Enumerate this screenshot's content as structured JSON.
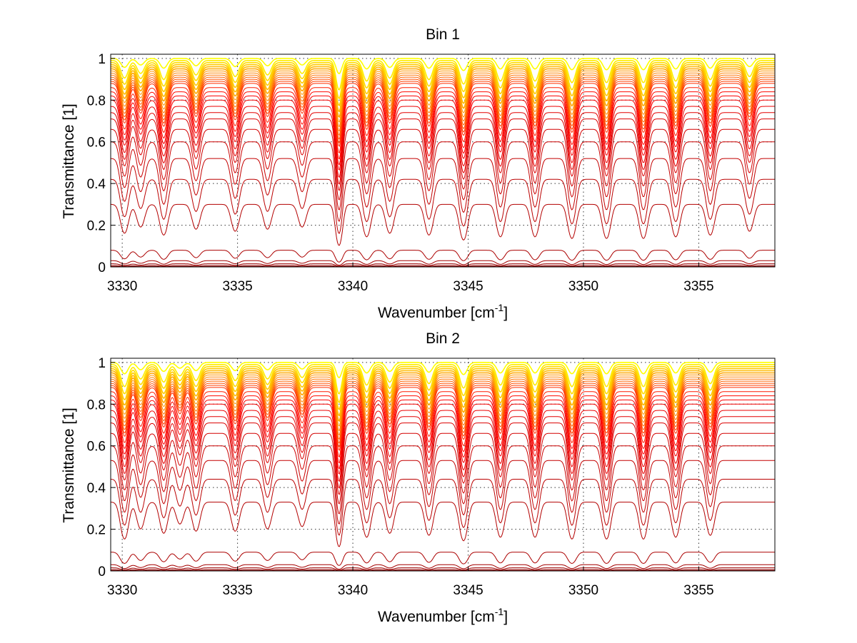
{
  "chart_data": [
    {
      "type": "line",
      "title": "Bin 1",
      "xlabel": "Wavenumber [cm",
      "xlabel_sup": "-1",
      "xlabel_end": "]",
      "ylabel": "Transmittance [1]",
      "xlim": [
        3329.5,
        3358.3
      ],
      "ylim": [
        0,
        1.02
      ],
      "xticks": [
        3330,
        3335,
        3340,
        3345,
        3350,
        3355
      ],
      "yticks": [
        0,
        0.2,
        0.4,
        0.6,
        0.8,
        1
      ],
      "ytick_labels": [
        "0",
        "0.2",
        "0.4",
        "0.6",
        "0.8",
        "1"
      ],
      "grid": true,
      "curve_count": 30,
      "color_range": [
        "#8b0000",
        "#ff0000",
        "#ffff00"
      ],
      "absorption_lines": [
        {
          "x": 3330.1,
          "depth": 0.55
        },
        {
          "x": 3330.8,
          "depth": 0.4
        },
        {
          "x": 3331.8,
          "depth": 0.6
        },
        {
          "x": 3333.2,
          "depth": 0.45
        },
        {
          "x": 3334.9,
          "depth": 0.5
        },
        {
          "x": 3336.3,
          "depth": 0.45
        },
        {
          "x": 3337.8,
          "depth": 0.4
        },
        {
          "x": 3339.4,
          "depth": 0.95
        },
        {
          "x": 3340.6,
          "depth": 0.65
        },
        {
          "x": 3341.6,
          "depth": 0.55
        },
        {
          "x": 3343.3,
          "depth": 0.6
        },
        {
          "x": 3344.8,
          "depth": 0.75
        },
        {
          "x": 3346.4,
          "depth": 0.65
        },
        {
          "x": 3347.9,
          "depth": 0.65
        },
        {
          "x": 3349.5,
          "depth": 0.7
        },
        {
          "x": 3351.0,
          "depth": 0.7
        },
        {
          "x": 3352.6,
          "depth": 0.7
        },
        {
          "x": 3354.0,
          "depth": 0.65
        },
        {
          "x": 3355.5,
          "depth": 0.6
        },
        {
          "x": 3357.2,
          "depth": 0.5
        }
      ],
      "approx_series_baselines": [
        1.0,
        0.99,
        0.98,
        0.97,
        0.96,
        0.95,
        0.94,
        0.93,
        0.92,
        0.91,
        0.9,
        0.89,
        0.88,
        0.86,
        0.84,
        0.82,
        0.8,
        0.77,
        0.74,
        0.71,
        0.66,
        0.6,
        0.52,
        0.42,
        0.3,
        0.08,
        0.03,
        0.015,
        0.007,
        0.002
      ]
    },
    {
      "type": "line",
      "title": "Bin 2",
      "xlabel": "Wavenumber [cm",
      "xlabel_sup": "-1",
      "xlabel_end": "]",
      "ylabel": "Transmittance [1]",
      "xlim": [
        3329.5,
        3358.3
      ],
      "ylim": [
        0,
        1.02
      ],
      "xticks": [
        3330,
        3335,
        3340,
        3345,
        3350,
        3355
      ],
      "yticks": [
        0,
        0.2,
        0.4,
        0.6,
        0.8,
        1
      ],
      "ytick_labels": [
        "0",
        "0.2",
        "0.4",
        "0.6",
        "0.8",
        "1"
      ],
      "grid": true,
      "curve_count": 30,
      "color_range": [
        "#8b0000",
        "#ff0000",
        "#ffff00"
      ],
      "absorption_lines": [
        {
          "x": 3330.1,
          "depth": 0.7
        },
        {
          "x": 3330.8,
          "depth": 0.45
        },
        {
          "x": 3331.8,
          "depth": 0.55
        },
        {
          "x": 3332.5,
          "depth": 0.35
        },
        {
          "x": 3333.2,
          "depth": 0.5
        },
        {
          "x": 3334.9,
          "depth": 0.5
        },
        {
          "x": 3336.3,
          "depth": 0.45
        },
        {
          "x": 3337.8,
          "depth": 0.4
        },
        {
          "x": 3339.4,
          "depth": 0.95
        },
        {
          "x": 3340.6,
          "depth": 0.65
        },
        {
          "x": 3341.6,
          "depth": 0.55
        },
        {
          "x": 3343.3,
          "depth": 0.6
        },
        {
          "x": 3344.8,
          "depth": 0.75
        },
        {
          "x": 3346.4,
          "depth": 0.65
        },
        {
          "x": 3347.9,
          "depth": 0.65
        },
        {
          "x": 3349.5,
          "depth": 0.7
        },
        {
          "x": 3351.0,
          "depth": 0.7
        },
        {
          "x": 3352.6,
          "depth": 0.7
        },
        {
          "x": 3354.0,
          "depth": 0.65
        },
        {
          "x": 3355.5,
          "depth": 0.6
        }
      ],
      "approx_series_baselines": [
        1.0,
        0.99,
        0.98,
        0.97,
        0.96,
        0.95,
        0.94,
        0.93,
        0.92,
        0.91,
        0.9,
        0.89,
        0.88,
        0.86,
        0.84,
        0.82,
        0.8,
        0.77,
        0.74,
        0.71,
        0.66,
        0.6,
        0.53,
        0.44,
        0.33,
        0.09,
        0.03,
        0.015,
        0.007,
        0.002
      ]
    }
  ]
}
